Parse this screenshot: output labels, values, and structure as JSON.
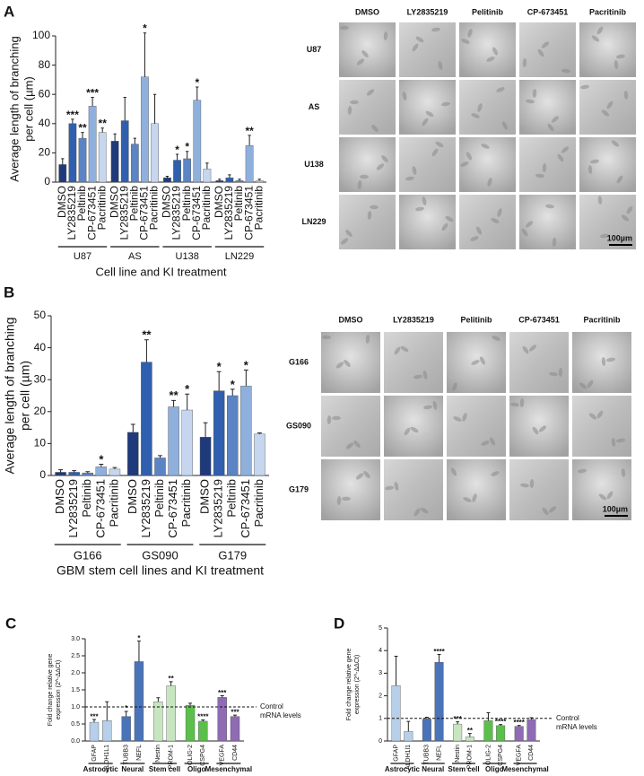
{
  "chart_data": [
    {
      "type": "bar",
      "panel": "A",
      "ylabel": [
        "Average length of branching",
        "per cell (µm)"
      ],
      "xlabel": "Cell line and KI treatment",
      "categories": [
        "DMSO",
        "LY2835219",
        "Peltinib",
        "CP-673451",
        "Pacritinib"
      ],
      "colors": [
        "#1f3a7a",
        "#2f5fae",
        "#5b84c4",
        "#8fb0dc",
        "#c5d6ee"
      ],
      "ylim": [
        0,
        100
      ],
      "yticks": [
        0,
        20,
        40,
        60,
        80,
        100
      ],
      "groups": [
        {
          "name": "U87",
          "values": [
            12,
            40,
            30,
            52,
            34
          ],
          "errors": [
            4,
            3,
            4,
            6,
            3
          ],
          "significance": [
            null,
            "***",
            "**",
            "***",
            "**"
          ]
        },
        {
          "name": "AS",
          "values": [
            28,
            42,
            26,
            72,
            40
          ],
          "errors": [
            5,
            16,
            4,
            30,
            20
          ],
          "significance": [
            null,
            null,
            null,
            "*",
            null
          ]
        },
        {
          "name": "U138",
          "values": [
            3,
            15,
            16,
            56,
            9
          ],
          "errors": [
            1,
            4,
            5,
            9,
            4
          ],
          "significance": [
            null,
            "*",
            "*",
            "*",
            null
          ]
        },
        {
          "name": "LN229",
          "values": [
            1,
            3,
            1,
            25,
            1
          ],
          "errors": [
            1,
            2,
            1,
            7,
            1
          ],
          "significance": [
            null,
            null,
            null,
            "**",
            null
          ]
        }
      ]
    },
    {
      "type": "bar",
      "panel": "B",
      "ylabel": [
        "Average length of branching",
        "per cell (µm)"
      ],
      "xlabel": "GBM stem cell lines and KI treatment",
      "categories": [
        "DMSO",
        "LY2835219",
        "Peltinib",
        "CP-673451",
        "Pacritinib"
      ],
      "colors": [
        "#1f3a7a",
        "#2f5fae",
        "#5b84c4",
        "#8fb0dc",
        "#c5d6ee"
      ],
      "ylim": [
        0,
        50
      ],
      "yticks": [
        0,
        10,
        20,
        30,
        40,
        50
      ],
      "groups": [
        {
          "name": "G166",
          "values": [
            1,
            1,
            0.8,
            2.7,
            2
          ],
          "errors": [
            0.8,
            0.5,
            0.4,
            0.8,
            0.5
          ],
          "significance": [
            null,
            null,
            null,
            "*",
            null
          ]
        },
        {
          "name": "GS090",
          "values": [
            13.5,
            35.5,
            5.5,
            21.5,
            20.5
          ],
          "errors": [
            2.5,
            7,
            0.7,
            2,
            5
          ],
          "significance": [
            null,
            "**",
            null,
            "**",
            "*"
          ]
        },
        {
          "name": "G179",
          "values": [
            12,
            26.5,
            25,
            28,
            13
          ],
          "errors": [
            4.5,
            6,
            2,
            5,
            0.3
          ],
          "significance": [
            null,
            "*",
            "*",
            "*",
            null
          ]
        }
      ]
    },
    {
      "type": "bar",
      "panel": "C",
      "ylabel": [
        "Fold change relative gene",
        "expression (2^-ΔΔCt)"
      ],
      "ylim": [
        0,
        3
      ],
      "yticks": [
        {
          "value": 0,
          "label": "0.0"
        },
        0.5,
        {
          "value": 1,
          "label": "1.0"
        },
        1.5,
        {
          "value": 2,
          "label": "2.0"
        },
        2.5,
        {
          "value": 3,
          "label": "3.0"
        }
      ],
      "reference": {
        "value": 1,
        "label": [
          "Control",
          "mRNA levels"
        ]
      },
      "groups": [
        {
          "name": "Astrocytic",
          "color": "#b7cfe8",
          "categories": [
            "GFAP",
            "ALDH1L1"
          ],
          "values": [
            0.55,
            0.6
          ],
          "errors": [
            0.08,
            0.55
          ],
          "significance": [
            "***",
            null
          ]
        },
        {
          "name": "Neural",
          "color": "#4a73b8",
          "categories": [
            "TUBB3",
            "NEFL"
          ],
          "values": [
            0.72,
            2.33
          ],
          "errors": [
            0.15,
            0.6
          ],
          "significance": [
            "*",
            "*"
          ]
        },
        {
          "name": "Stem cell",
          "color": "#c7e6c0",
          "categories": [
            "Nestin",
            "PROM-1"
          ],
          "values": [
            1.15,
            1.62
          ],
          "errors": [
            0.12,
            0.12
          ],
          "significance": [
            null,
            "**"
          ]
        },
        {
          "name": "Oligo",
          "color": "#5cbf4b",
          "categories": [
            "OLIG-2",
            "CSPG4"
          ],
          "values": [
            1.05,
            0.58
          ],
          "errors": [
            0.06,
            0.04
          ],
          "significance": [
            null,
            "****"
          ]
        },
        {
          "name": "Mesenchymal",
          "color": "#8e6bb3",
          "categories": [
            "VEGFA",
            "CD44"
          ],
          "values": [
            1.28,
            0.72
          ],
          "errors": [
            0.05,
            0.04
          ],
          "significance": [
            "***",
            "***"
          ]
        }
      ]
    },
    {
      "type": "bar",
      "panel": "D",
      "ylabel": [
        "Fold change relative gene",
        "expression (2^-ΔΔCt)"
      ],
      "ylim": [
        0,
        5
      ],
      "yticks": [
        0,
        1,
        2,
        3,
        4,
        5
      ],
      "reference": {
        "value": 1,
        "label": [
          "Control",
          "mRNA levels"
        ]
      },
      "groups": [
        {
          "name": "Astrocytic",
          "color": "#b7cfe8",
          "categories": [
            "GFAP",
            "ALDH1l1"
          ],
          "values": [
            2.45,
            0.42
          ],
          "errors": [
            1.3,
            0.45
          ],
          "significance": [
            null,
            null
          ]
        },
        {
          "name": "Neural",
          "color": "#4a73b8",
          "categories": [
            "TUBB3",
            "NEFL"
          ],
          "values": [
            0.97,
            3.48
          ],
          "errors": [
            0.08,
            0.35
          ],
          "significance": [
            null,
            "****"
          ]
        },
        {
          "name": "Stem cell",
          "color": "#c7e6c0",
          "categories": [
            "Nestin",
            "PROM-1"
          ],
          "values": [
            0.75,
            0.18
          ],
          "errors": [
            0.1,
            0.15
          ],
          "significance": [
            "***",
            "**"
          ]
        },
        {
          "name": "Oligo",
          "color": "#5cbf4b",
          "categories": [
            "OLIG-2",
            "CSPG4"
          ],
          "values": [
            0.9,
            0.68
          ],
          "errors": [
            0.35,
            0.05
          ],
          "significance": [
            null,
            "****"
          ]
        },
        {
          "name": "Mesenchymal",
          "color": "#8e6bb3",
          "categories": [
            "VEGFA",
            "CD44"
          ],
          "values": [
            0.65,
            0.95
          ],
          "errors": [
            0.04,
            0.08
          ],
          "significance": [
            "****",
            null
          ]
        }
      ]
    }
  ],
  "image_grids": [
    {
      "columns": [
        "DMSO",
        "LY2835219",
        "Pelitinib",
        "CP-673451",
        "Pacritinib"
      ],
      "rows": [
        "U87",
        "AS",
        "U138",
        "LN229"
      ],
      "scale_bar": "100µm"
    },
    {
      "columns": [
        "DMSO",
        "LY2835219",
        "Pelitinib",
        "CP-673451",
        "Pacritinib"
      ],
      "rows": [
        "G166",
        "GS090",
        "G179"
      ],
      "scale_bar": "100µm"
    }
  ]
}
